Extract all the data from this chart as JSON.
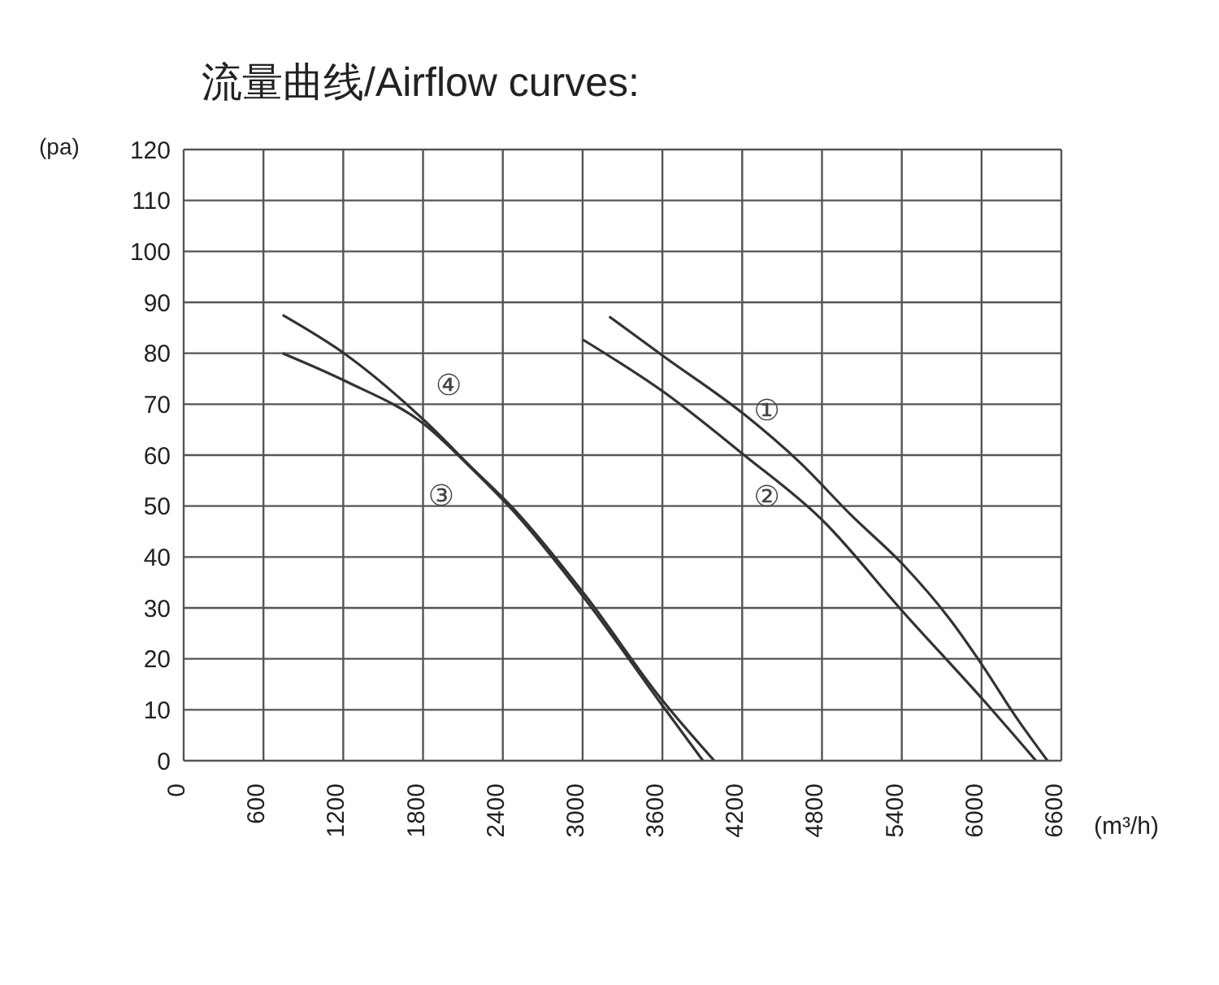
{
  "chart_data": {
    "type": "line",
    "title": "流量曲线/Airflow curves:",
    "xlabel": "(m³/h)",
    "ylabel": "(pa)",
    "xlim": [
      0,
      6600
    ],
    "xticks": [
      0,
      600,
      1200,
      1800,
      2400,
      3000,
      3600,
      4200,
      4800,
      5400,
      6000,
      6600
    ],
    "ylim": [
      0,
      120
    ],
    "yticks": [
      0,
      10,
      20,
      30,
      40,
      50,
      60,
      70,
      80,
      90,
      100,
      110,
      120
    ],
    "grid": true,
    "marker": "none",
    "line_style": "solid",
    "series": [
      {
        "name": "①",
        "color": "#333333",
        "x": [
          3200,
          3620,
          4215,
          4636,
          5020,
          5417,
          5752,
          6012,
          6248,
          6496
        ],
        "values": [
          87.2,
          79.2,
          68,
          58.5,
          48.2,
          38.3,
          28.1,
          18.5,
          9,
          0
        ]
      },
      {
        "name": "②",
        "color": "#333333",
        "x": [
          3000,
          3620,
          4215,
          4800,
          5417,
          6037,
          6409
        ],
        "values": [
          82.7,
          72.2,
          60,
          47.3,
          29,
          11.2,
          0
        ]
      },
      {
        "name": "③",
        "color": "#333333",
        "x": [
          744,
          1227,
          1822,
          2157,
          2480,
          3025,
          3595,
          3905
        ],
        "values": [
          80,
          74.4,
          65.8,
          57.6,
          49,
          31.5,
          11,
          0
        ]
      },
      {
        "name": "④",
        "color": "#333333",
        "x": [
          744,
          1227,
          1822,
          2157,
          2480,
          3025,
          3595,
          3990
        ],
        "values": [
          87.5,
          79.6,
          66.5,
          57.8,
          49.5,
          32.3,
          12,
          0
        ]
      }
    ]
  }
}
